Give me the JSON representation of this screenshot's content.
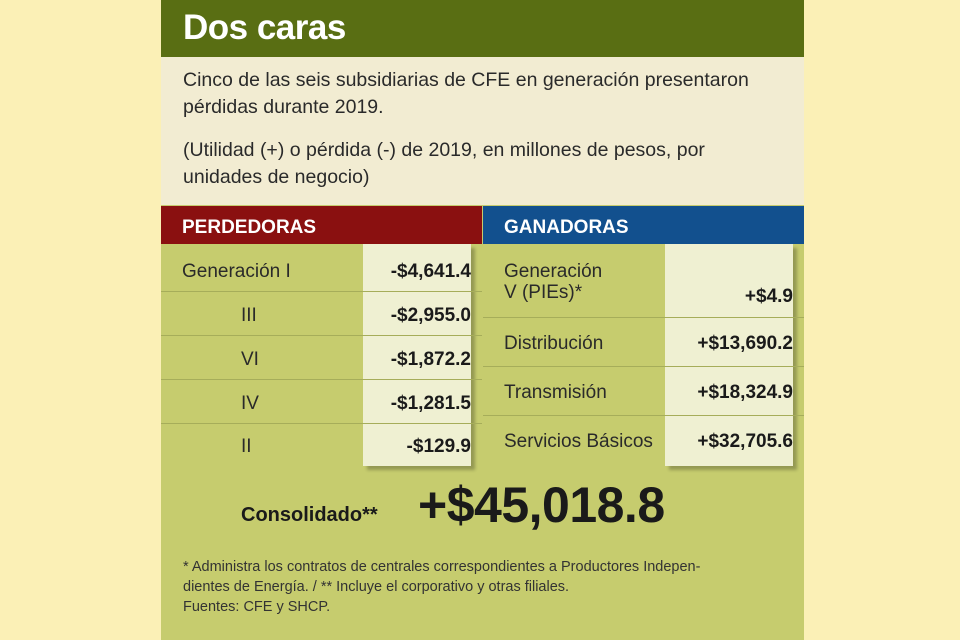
{
  "title": "Dos caras",
  "intro": {
    "line1": "Cinco de las seis subsidiarias de CFE en generación presentaron pérdidas durante 2019.",
    "line2": "(Utilidad (+) o pérdida (-) de 2019, en millones de pesos, por unidades de negocio)"
  },
  "losers": {
    "header": "PERDEDORAS",
    "rows": [
      {
        "label": "Generación I",
        "value": "-$4,641.4"
      },
      {
        "label": "III",
        "value": "-$2,955.0"
      },
      {
        "label": "VI",
        "value": "-$1,872.2"
      },
      {
        "label": "IV",
        "value": "-$1,281.5"
      },
      {
        "label": "II",
        "value": "-$129.9"
      }
    ]
  },
  "winners": {
    "header": "GANADORAS",
    "rows": [
      {
        "label_line1": "Generación",
        "label_line2": "V (PIEs)*",
        "value": "+$4.9"
      },
      {
        "label": "Distribución",
        "value": "+$13,690.2"
      },
      {
        "label": "Transmisión",
        "value": "+$18,324.9"
      },
      {
        "label": "Servicios Básicos",
        "value": "+$32,705.6"
      }
    ]
  },
  "total": {
    "label": "Consolidado**",
    "value": "+$45,018.8"
  },
  "notes": {
    "line1": "* Administra los contratos de centrales correspondientes a Productores Indepen-",
    "line2": "dientes de Energía. / ** Incluye el corporativo y otras filiales.",
    "line3": "Fuentes: CFE y SHCP."
  },
  "colors": {
    "title_bg": "#596e13",
    "losers_bg": "#8a1010",
    "winners_bg": "#12508e",
    "panel_bg": "#c6cc6e",
    "page_bg": "#fbf0b6"
  }
}
